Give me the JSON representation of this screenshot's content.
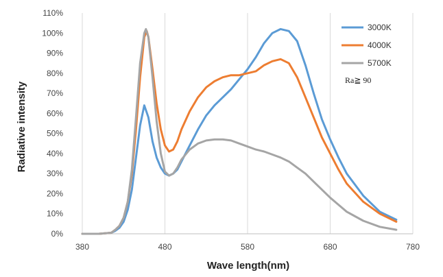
{
  "chart_data": {
    "type": "line",
    "title": "",
    "xlabel": "Wave length(nm)",
    "ylabel": "Radiative intensity",
    "xlim": [
      380,
      780
    ],
    "ylim": [
      0,
      110
    ],
    "x_ticks": [
      "380",
      "480",
      "580",
      "680",
      "780"
    ],
    "y_ticks": [
      "0%",
      "10%",
      "20%",
      "30%",
      "40%",
      "50%",
      "60%",
      "70%",
      "80%",
      "90%",
      "100%",
      "110%"
    ],
    "grid": "vertical",
    "legend_position": "top-right",
    "annotation": "Ra≧ 90",
    "series": [
      {
        "name": "3000K",
        "color": "#5b9bd5",
        "x": [
          380,
          400,
          415,
          420,
          425,
          430,
          435,
          440,
          445,
          450,
          455,
          460,
          465,
          470,
          475,
          480,
          485,
          490,
          495,
          500,
          510,
          520,
          530,
          540,
          550,
          560,
          570,
          580,
          590,
          600,
          610,
          620,
          630,
          640,
          650,
          660,
          670,
          680,
          690,
          700,
          720,
          740,
          760
        ],
        "y": [
          0,
          0,
          0.5,
          1.5,
          3,
          6,
          12,
          22,
          38,
          54,
          64,
          58,
          46,
          38,
          33,
          30,
          29,
          30,
          32,
          36,
          44,
          52,
          59,
          64,
          68,
          72,
          77,
          82,
          88,
          95,
          100,
          102,
          101,
          96,
          84,
          70,
          57,
          47,
          38,
          30,
          19,
          11,
          7
        ]
      },
      {
        "name": "4000K",
        "color": "#ed7d31",
        "x": [
          380,
          400,
          415,
          420,
          425,
          430,
          435,
          440,
          445,
          450,
          455,
          458,
          460,
          465,
          470,
          475,
          480,
          485,
          490,
          495,
          500,
          510,
          520,
          530,
          540,
          550,
          560,
          570,
          580,
          590,
          600,
          610,
          620,
          630,
          640,
          650,
          660,
          670,
          680,
          690,
          700,
          720,
          740,
          760
        ],
        "y": [
          0,
          0,
          0.5,
          2,
          4,
          8,
          16,
          30,
          52,
          78,
          98,
          101,
          98,
          82,
          65,
          52,
          44,
          41,
          42,
          46,
          52,
          61,
          68,
          73,
          76,
          78,
          79,
          79,
          80,
          81,
          84,
          86,
          87,
          85,
          78,
          68,
          58,
          48,
          40,
          32,
          25,
          16,
          10,
          6
        ]
      },
      {
        "name": "5700K",
        "color": "#a5a5a5",
        "x": [
          380,
          400,
          415,
          420,
          425,
          430,
          435,
          440,
          445,
          450,
          455,
          457,
          460,
          465,
          470,
          475,
          480,
          485,
          490,
          495,
          500,
          510,
          520,
          530,
          540,
          550,
          560,
          570,
          580,
          590,
          600,
          610,
          620,
          630,
          640,
          650,
          660,
          670,
          680,
          690,
          700,
          720,
          740,
          760
        ],
        "y": [
          0,
          0,
          0.5,
          2,
          4,
          8,
          16,
          32,
          58,
          85,
          100,
          102,
          98,
          78,
          56,
          40,
          31,
          29,
          30,
          33,
          37,
          42,
          45,
          46.5,
          47,
          47,
          46.5,
          45,
          43.5,
          42,
          41,
          39.5,
          38,
          36,
          33,
          30,
          26,
          22,
          18,
          14.5,
          11,
          6.5,
          3.5,
          2
        ]
      }
    ]
  }
}
